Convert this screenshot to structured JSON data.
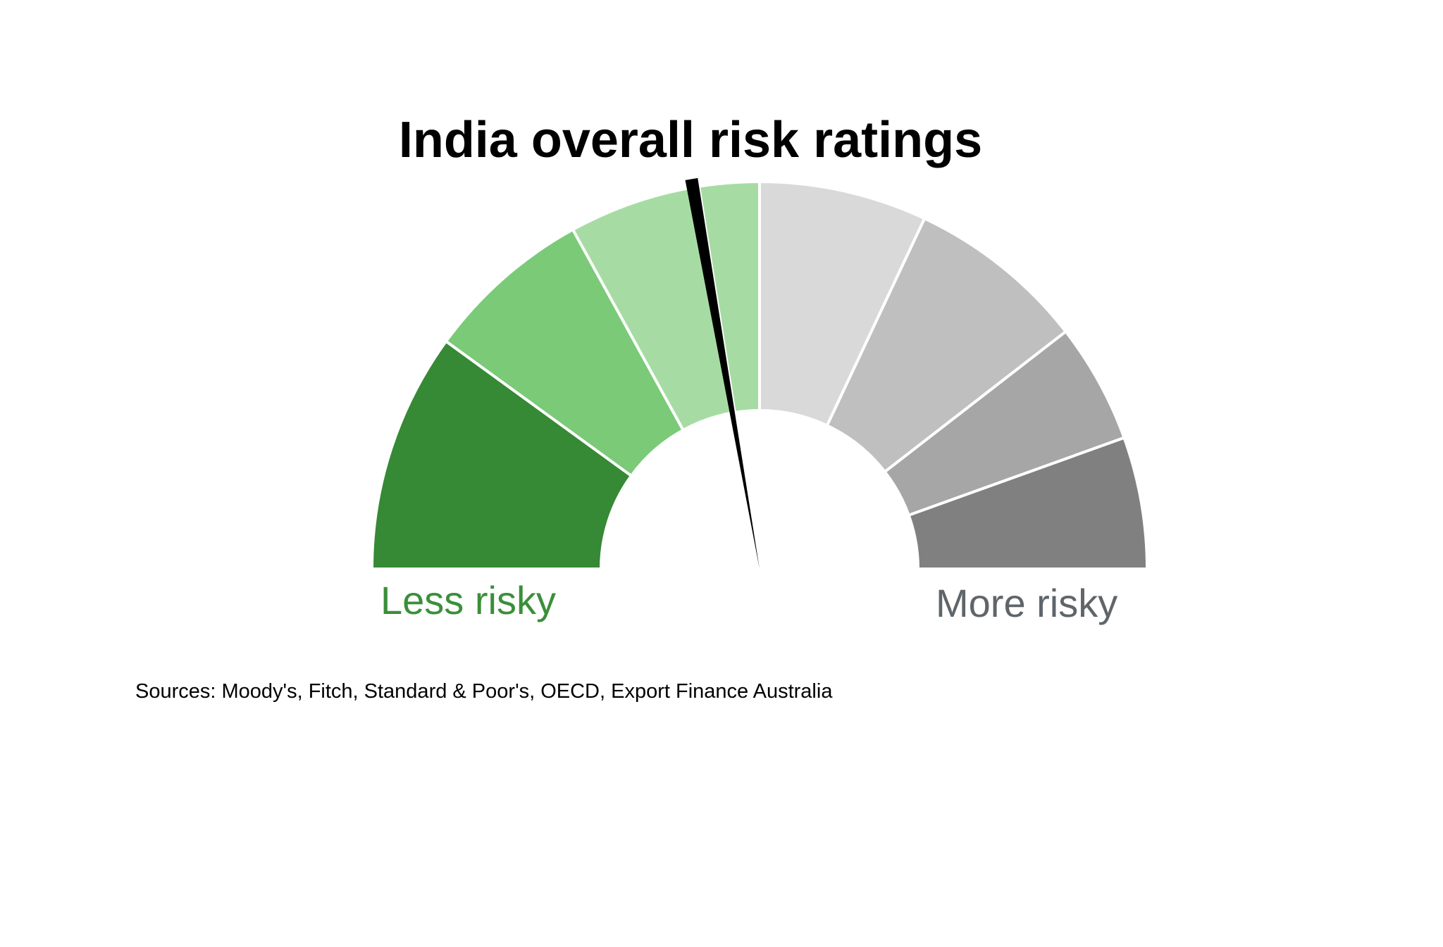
{
  "chart_data": {
    "type": "gauge",
    "title": "India overall risk ratings",
    "scale_min": 0,
    "scale_max": 10,
    "value": 4.45,
    "bands": [
      {
        "from": 0,
        "to": 2,
        "color": "#368935"
      },
      {
        "from": 2,
        "to": 3.4,
        "color": "#7aca78"
      },
      {
        "from": 3.4,
        "to": 4.5,
        "color": "#a6dca3"
      },
      {
        "from": 4.5,
        "to": 5.0,
        "color": "#a6dca3"
      },
      {
        "from": 5.0,
        "to": 6.4,
        "color": "#d9d9d9"
      },
      {
        "from": 6.4,
        "to": 7.9,
        "color": "#bfbfbf"
      },
      {
        "from": 7.9,
        "to": 8.9,
        "color": "#a6a6a6"
      },
      {
        "from": 8.9,
        "to": 10,
        "color": "#808080"
      }
    ],
    "min_label": "Less risky",
    "max_label": "More risky",
    "min_label_color": "#3a8f3a",
    "max_label_color": "#5f6569",
    "needle_color": "#000000",
    "source": "Sources: Moody's, Fitch, Standard & Poor's, OECD, Export Finance Australia"
  }
}
